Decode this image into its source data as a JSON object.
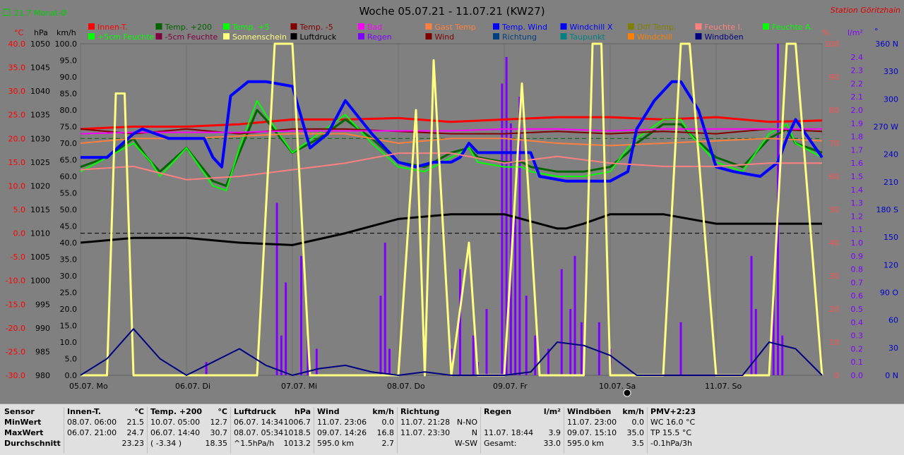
{
  "header": {
    "title": "Woche 05.07.21 - 11.07.21 (KW27)",
    "station": "Station Göritzhain",
    "month_avg": "21.7 Monat-Ø"
  },
  "legend": [
    {
      "label": "Innen-T.",
      "color": "#ff0000"
    },
    {
      "label": "Temp. +200",
      "color": "#006400"
    },
    {
      "label": "Temp. +5",
      "color": "#00ff00"
    },
    {
      "label": "Temp. -5",
      "color": "#800000"
    },
    {
      "label": "Bad",
      "color": "#ff00ff"
    },
    {
      "label": "Gast Temp",
      "color": "#ff8040"
    },
    {
      "label": "Temp. Wind",
      "color": "#0000ff"
    },
    {
      "label": "Windchill X",
      "color": "#0000ff"
    },
    {
      "label": "Diff Temp.",
      "color": "#808000"
    },
    {
      "label": "Feuchte I.",
      "color": "#ff8080"
    },
    {
      "label": "Feuchte A.",
      "color": "#00ff00"
    },
    {
      "label": "+5cm Feuchte",
      "color": "#00ff00"
    },
    {
      "label": "-5cm Feuchte",
      "color": "#800040"
    },
    {
      "label": "Sonnenschein",
      "color": "#ffff80"
    },
    {
      "label": "Luftdruck",
      "color": "#000000"
    },
    {
      "label": "Regen",
      "color": "#8000ff"
    },
    {
      "label": "Wind",
      "color": "#800000"
    },
    {
      "label": "Richtung",
      "color": "#004080"
    },
    {
      "label": "Taupunkt",
      "color": "#008080"
    },
    {
      "label": "Windchill",
      "color": "#ff8000"
    },
    {
      "label": "Windböen",
      "color": "#000080"
    }
  ],
  "axes": {
    "temp_unit": "°C",
    "press_unit": "hPa",
    "wind_unit": "km/h",
    "hum_unit": "%",
    "rain_unit": "l/m²",
    "dir_unit": "°",
    "temp_ticks": [
      "40.0",
      "35.0",
      "30.0",
      "25.0",
      "20.0",
      "15.0",
      "10.0",
      "5.0",
      "0.0",
      "-5.0",
      "-10.0",
      "-15.0",
      "-20.0",
      "-25.0",
      "-30.0"
    ],
    "press_ticks": [
      "1050",
      "1045",
      "1040",
      "1035",
      "1030",
      "1025",
      "1020",
      "1015",
      "1010",
      "1005",
      "1000",
      "995",
      "990",
      "985",
      "980"
    ],
    "wind_ticks": [
      "100.0",
      "95.0",
      "90.0",
      "85.0",
      "80.0",
      "75.0",
      "70.0",
      "65.0",
      "60.0",
      "55.0",
      "50.0",
      "45.0",
      "40.0",
      "35.0",
      "30.0",
      "25.0",
      "20.0",
      "15.0",
      "10.0",
      "5.0",
      "0.0"
    ],
    "hum_ticks": [
      "100",
      "90",
      "80",
      "70",
      "60",
      "50",
      "40",
      "30",
      "20",
      "10",
      "0"
    ],
    "rain_ticks": [
      "2.4",
      "2.3",
      "2.2",
      "2.1",
      "2.0",
      "1.9",
      "1.8",
      "1.7",
      "1.6",
      "1.5",
      "1.4",
      "1.3",
      "1.2",
      "1.1",
      "1.0",
      "0.9",
      "0.8",
      "0.7",
      "0.6",
      "0.5",
      "0.4",
      "0.3",
      "0.2",
      "0.1",
      "0.0"
    ],
    "dir_ticks": [
      "360 N",
      "330",
      "300",
      "270 W",
      "240",
      "210",
      "180 S",
      "150",
      "120",
      "90 O",
      "60",
      "30",
      "0 N"
    ],
    "x_labels": [
      "05.07. Mo",
      "06.07. Di",
      "07.07. Mi",
      "08.07. Do",
      "09.07. Fr",
      "10.07. Sa",
      "11.07. So"
    ]
  },
  "chart_data": {
    "type": "line",
    "x_unit": "hours since 05.07. 00:00",
    "x_range": [
      0,
      168
    ],
    "temp_range": [
      -30,
      40
    ],
    "press_range": [
      980,
      1050
    ],
    "wind_range": [
      0,
      100
    ],
    "hum_range": [
      0,
      100
    ],
    "rain_range": [
      0,
      2.5
    ],
    "dir_range": [
      0,
      360
    ],
    "series": [
      {
        "name": "Innen-T.",
        "axis": "temp",
        "color": "#ff0000",
        "width": 3,
        "x": [
          0,
          12,
          24,
          36,
          48,
          60,
          72,
          84,
          96,
          108,
          120,
          132,
          144,
          156,
          168
        ],
        "y": [
          22,
          22.5,
          22.5,
          23,
          24,
          24,
          24.3,
          23.5,
          24,
          24.5,
          24.5,
          24,
          24.5,
          23.5,
          23.8
        ]
      },
      {
        "name": "Temp. +200",
        "axis": "temp",
        "color": "#006400",
        "width": 3,
        "x": [
          0,
          6,
          12,
          15,
          18,
          24,
          30,
          33,
          36,
          40,
          42,
          48,
          54,
          60,
          66,
          72,
          78,
          84,
          88,
          90,
          96,
          100,
          102,
          108,
          114,
          120,
          124,
          126,
          132,
          136,
          138,
          144,
          150,
          156,
          160,
          162,
          168
        ],
        "y": [
          14,
          16,
          20,
          16,
          13,
          18,
          11,
          10,
          17,
          26,
          24,
          17,
          20,
          24,
          20,
          15,
          14,
          17,
          18,
          16,
          15,
          15,
          14,
          13,
          13,
          14,
          17,
          19,
          23,
          23,
          21,
          16,
          14,
          20,
          22,
          19,
          17
        ]
      },
      {
        "name": "Temp. +5",
        "axis": "temp",
        "color": "#00ff00",
        "width": 2,
        "x": [
          0,
          6,
          12,
          16,
          18,
          24,
          30,
          33,
          36,
          40,
          42,
          48,
          54,
          60,
          66,
          72,
          78,
          84,
          88,
          90,
          96,
          100,
          102,
          108,
          114,
          120,
          124,
          126,
          132,
          136,
          138,
          144,
          150,
          156,
          160,
          162,
          168
        ],
        "y": [
          13,
          16,
          19,
          15,
          12,
          18,
          10,
          9,
          18,
          28,
          25,
          17,
          21,
          25,
          19,
          14,
          13,
          16,
          18,
          15,
          14,
          14,
          13,
          12,
          12,
          13,
          18,
          20,
          24,
          24,
          21,
          15,
          13,
          21,
          23,
          19,
          16
        ]
      },
      {
        "name": "Temp. -5",
        "axis": "temp",
        "color": "#800000",
        "width": 2,
        "x": [
          0,
          12,
          24,
          36,
          48,
          60,
          72,
          84,
          96,
          108,
          120,
          132,
          144,
          156,
          168
        ],
        "y": [
          22,
          21,
          22,
          21,
          22,
          22,
          21.5,
          21,
          21,
          21.5,
          21,
          21.5,
          21,
          22,
          21.5
        ]
      },
      {
        "name": "Bad",
        "axis": "temp",
        "color": "#ff00ff",
        "width": 2,
        "x": [
          0,
          12,
          24,
          36,
          48,
          60,
          72,
          84,
          96,
          108,
          120,
          132,
          144,
          156,
          168
        ],
        "y": [
          21,
          21.3,
          21.3,
          21.3,
          21.6,
          21.6,
          21.6,
          21.6,
          22,
          22,
          21.6,
          22,
          22,
          22,
          22
        ]
      },
      {
        "name": "Gast Temp",
        "axis": "temp",
        "color": "#ff8040",
        "width": 2,
        "x": [
          0,
          12,
          24,
          36,
          48,
          60,
          72,
          84,
          96,
          108,
          120,
          132,
          144,
          156,
          168
        ],
        "y": [
          19,
          20,
          20,
          20.5,
          21,
          21,
          19,
          20,
          20,
          19,
          18.5,
          19,
          19.5,
          20,
          19.5
        ]
      },
      {
        "name": "Temp. Wind",
        "axis": "temp",
        "color": "#0000ff",
        "width": 4,
        "x": [
          0,
          6,
          12,
          14,
          20,
          26,
          28,
          30,
          32,
          34,
          38,
          42,
          48,
          52,
          56,
          60,
          66,
          72,
          76,
          80,
          84,
          86,
          88,
          90,
          96,
          100,
          102,
          104,
          110,
          114,
          120,
          124,
          126,
          130,
          134,
          136,
          140,
          144,
          148,
          154,
          158,
          160,
          162,
          168
        ],
        "y": [
          16,
          16,
          21,
          22,
          20,
          20,
          20,
          16,
          14,
          29,
          32,
          32,
          31,
          18,
          21,
          28,
          21,
          15,
          14,
          15,
          15,
          16,
          19,
          17,
          17,
          17,
          17,
          12,
          11,
          11,
          11,
          13,
          22,
          28,
          32,
          32,
          26,
          14,
          13,
          12,
          15,
          20,
          24,
          16
        ]
      },
      {
        "name": "Feuchte I.",
        "axis": "hum",
        "color": "#ff8080",
        "width": 2,
        "x": [
          0,
          12,
          24,
          36,
          48,
          60,
          72,
          84,
          96,
          108,
          120,
          132,
          144,
          156,
          168
        ],
        "y": [
          62,
          63,
          59,
          60,
          62,
          64,
          67,
          67,
          64,
          66,
          64,
          63,
          63,
          64,
          64
        ]
      },
      {
        "name": "Luftdruck",
        "axis": "press",
        "color": "#000000",
        "width": 3,
        "x": [
          0,
          12,
          24,
          36,
          48,
          60,
          72,
          84,
          96,
          108,
          110,
          114,
          120,
          132,
          144,
          156,
          168
        ],
        "y": [
          1008,
          1009,
          1009,
          1008,
          1007.5,
          1010,
          1013,
          1014,
          1014,
          1011,
          1011,
          1012,
          1014,
          1014,
          1012,
          1012,
          1012
        ]
      },
      {
        "name": "Sonnenschein",
        "axis": "wind",
        "color": "#ffff80",
        "width": 3,
        "x": [
          0,
          6,
          8,
          10,
          12,
          14,
          24,
          30,
          36,
          40,
          44,
          48,
          52,
          54,
          60,
          66,
          72,
          76,
          78,
          80,
          84,
          88,
          90,
          96,
          100,
          104,
          108,
          114,
          116,
          118,
          120,
          124,
          126,
          132,
          136,
          138,
          144,
          150,
          156,
          160,
          162,
          168
        ],
        "y": [
          0,
          0,
          85,
          85,
          0,
          0,
          0,
          0,
          0,
          0,
          100,
          100,
          0,
          0,
          0,
          0,
          0,
          80,
          0,
          95,
          0,
          40,
          0,
          0,
          88,
          0,
          0,
          0,
          100,
          100,
          0,
          0,
          0,
          0,
          100,
          100,
          0,
          0,
          0,
          100,
          100,
          0
        ]
      },
      {
        "name": "Windböen",
        "axis": "wind",
        "color": "#000080",
        "width": 2,
        "x": [
          0,
          6,
          12,
          18,
          24,
          30,
          36,
          42,
          48,
          54,
          60,
          66,
          72,
          78,
          84,
          90,
          96,
          102,
          108,
          114,
          120,
          126,
          132,
          138,
          144,
          150,
          156,
          162,
          168
        ],
        "y": [
          0,
          5,
          14,
          5,
          0,
          4,
          8,
          3,
          0,
          2,
          3,
          1,
          0,
          1,
          0,
          0,
          0,
          1,
          10,
          9,
          6,
          0,
          0,
          0,
          0,
          0,
          10,
          8,
          0
        ]
      }
    ],
    "dashed_lines": [
      {
        "axis": "temp",
        "value": 0,
        "color": "#000000"
      },
      {
        "axis": "temp",
        "value": 20,
        "color": "#006400"
      }
    ],
    "rain_bars": [
      {
        "x": 28.5,
        "v": 0.1
      },
      {
        "x": 44.5,
        "v": 1.3
      },
      {
        "x": 45.5,
        "v": 0.3
      },
      {
        "x": 46.5,
        "v": 0.7
      },
      {
        "x": 50,
        "v": 0.9
      },
      {
        "x": 51.5,
        "v": 0.3
      },
      {
        "x": 53.5,
        "v": 0.2
      },
      {
        "x": 68,
        "v": 0.6
      },
      {
        "x": 69,
        "v": 1.0
      },
      {
        "x": 70,
        "v": 0.2
      },
      {
        "x": 84,
        "v": 0.2
      },
      {
        "x": 86,
        "v": 0.8
      },
      {
        "x": 89,
        "v": 0.3
      },
      {
        "x": 90,
        "v": 0.1
      },
      {
        "x": 92,
        "v": 0.5
      },
      {
        "x": 95.5,
        "v": 2.2
      },
      {
        "x": 96.5,
        "v": 2.4
      },
      {
        "x": 97.5,
        "v": 1.9
      },
      {
        "x": 98.5,
        "v": 1.2
      },
      {
        "x": 99.5,
        "v": 2.1
      },
      {
        "x": 101,
        "v": 0.6
      },
      {
        "x": 103,
        "v": 0.3
      },
      {
        "x": 106,
        "v": 0.2
      },
      {
        "x": 109,
        "v": 0.8
      },
      {
        "x": 111,
        "v": 0.5
      },
      {
        "x": 112,
        "v": 0.9
      },
      {
        "x": 113.5,
        "v": 0.4
      },
      {
        "x": 117.5,
        "v": 0.4
      },
      {
        "x": 120,
        "v": 0.2
      },
      {
        "x": 136,
        "v": 0.4
      },
      {
        "x": 152,
        "v": 0.9
      },
      {
        "x": 153,
        "v": 0.5
      },
      {
        "x": 157,
        "v": 0.6
      },
      {
        "x": 158,
        "v": 2.5
      },
      {
        "x": 159,
        "v": 0.3
      }
    ]
  },
  "stats": {
    "labels": [
      "Sensor",
      "MinWert",
      "MaxWert",
      "Durchschnitt"
    ],
    "panels": [
      {
        "name": "Innen-T.",
        "unit": "°C",
        "rows": [
          [
            "08.07.  06:00",
            "21.5"
          ],
          [
            "06.07.  21:00",
            "24.7"
          ],
          [
            "",
            "23.23"
          ]
        ]
      },
      {
        "name": "Temp. +200",
        "unit": "°C",
        "rows": [
          [
            "10.07.  05:00",
            "12.7"
          ],
          [
            "06.07.  14:40",
            "30.7"
          ],
          [
            "( -3.34 )",
            "18.35"
          ]
        ]
      },
      {
        "name": "Luftdruck",
        "unit": "hPa",
        "rows": [
          [
            "06.07.  14:34",
            "1006.7"
          ],
          [
            "08.07.  05:34",
            "1018.5"
          ],
          [
            "^1.5hPa/h",
            "1013.2"
          ]
        ]
      },
      {
        "name": "Wind",
        "unit": "km/h",
        "rows": [
          [
            "11.07.  23:06",
            "0.0"
          ],
          [
            "09.07.  14:26",
            "16.8"
          ],
          [
            "595.0 km",
            "2.7"
          ]
        ]
      },
      {
        "name": "Richtung",
        "unit": "",
        "rows": [
          [
            "11.07.  21:28",
            "N-NO"
          ],
          [
            "11.07.  23:30",
            "N"
          ],
          [
            "",
            "W-SW"
          ]
        ]
      },
      {
        "name": "Regen",
        "unit": "l/m²",
        "rows": [
          [
            "",
            ""
          ],
          [
            "11.07.  18:44",
            "3.9"
          ],
          [
            "Gesamt:",
            "33.0"
          ]
        ]
      },
      {
        "name": "Windböen",
        "unit": "km/h",
        "rows": [
          [
            "11.07.  23:00",
            "0.0"
          ],
          [
            "09.07.  15:10",
            "35.0"
          ],
          [
            "595.0 km",
            "3.5"
          ]
        ]
      },
      {
        "name": "PMV+2:23",
        "unit": "",
        "rows": [
          [
            "WC 16.0 °C",
            ""
          ],
          [
            "TP 15.5 °C",
            ""
          ],
          [
            "-0.1hPa/3h",
            ""
          ]
        ]
      }
    ]
  }
}
